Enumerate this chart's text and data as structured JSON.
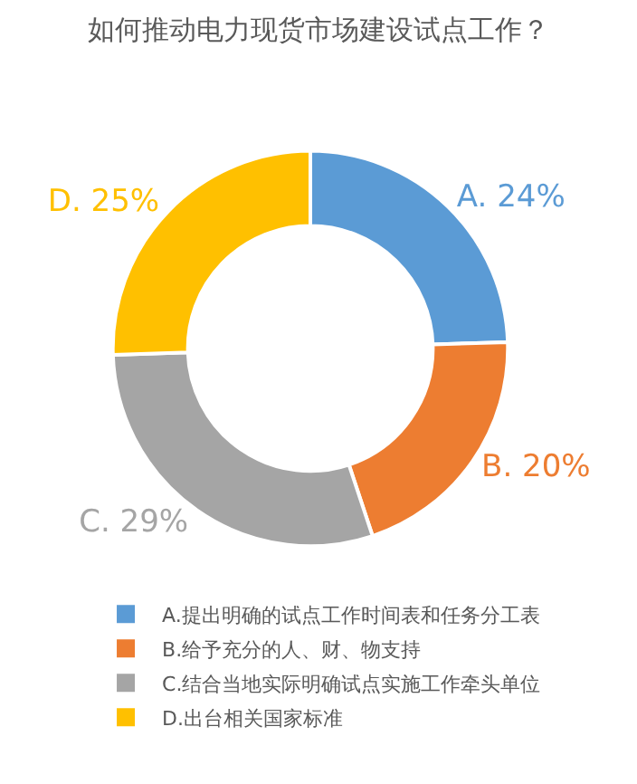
{
  "chart_data": {
    "type": "donut",
    "title": "如何推动电力现货市场建设试点工作？",
    "categories": [
      "A.提出明确的试点工作时间表和任务分工表",
      "B.给予充分的人、财、物支持",
      "C.结合当地实际明确试点实施工作牵头单位",
      "D.出台相关国家标准"
    ],
    "values": [
      24,
      20,
      29,
      25
    ],
    "value_labels": [
      "A. 24%",
      "B. 20%",
      "C. 29%",
      "D. 25%"
    ],
    "colors": [
      "#5b9bd5",
      "#ed7d31",
      "#a5a5a5",
      "#ffc000"
    ],
    "legend": "bottom"
  }
}
